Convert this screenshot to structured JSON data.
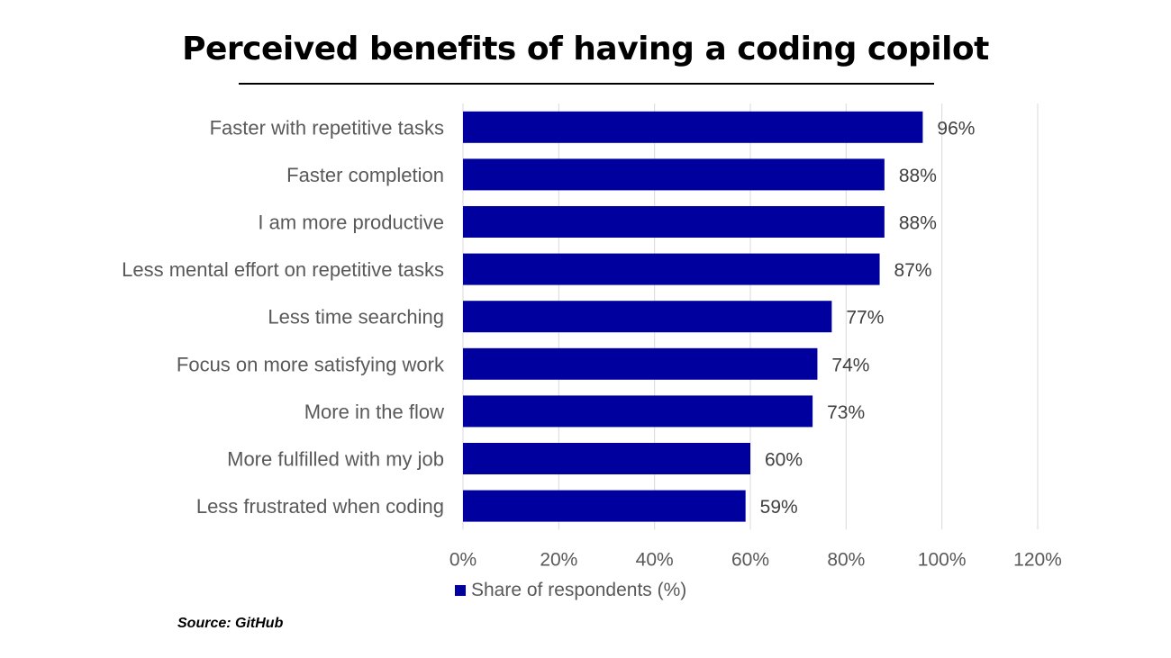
{
  "chart_data": {
    "type": "bar",
    "orientation": "horizontal",
    "title": "Perceived benefits of having a coding copilot",
    "categories": [
      "Faster with repetitive tasks",
      "Faster completion",
      "I am more productive",
      "Less mental effort on repetitive tasks",
      "Less time searching",
      "Focus on more satisfying work",
      "More in the flow",
      "More fulfilled with my job",
      "Less frustrated when coding"
    ],
    "series": [
      {
        "name": "Share of respondents (%)",
        "values": [
          96,
          88,
          88,
          87,
          77,
          74,
          73,
          60,
          59
        ],
        "color": "#00009F"
      }
    ],
    "data_labels": [
      "96%",
      "88%",
      "88%",
      "87%",
      "77%",
      "74%",
      "73%",
      "60%",
      "59%"
    ],
    "xlim": [
      0,
      120
    ],
    "xticks": [
      0,
      20,
      40,
      60,
      80,
      100,
      120
    ],
    "xtick_labels": [
      "0%",
      "20%",
      "40%",
      "60%",
      "80%",
      "100%",
      "120%"
    ],
    "grid": true,
    "legend_position": "bottom"
  },
  "source": "Source: GitHub",
  "colors": {
    "bar": "#00009F",
    "gridline": "#D9D9D9",
    "text": "#595959"
  }
}
